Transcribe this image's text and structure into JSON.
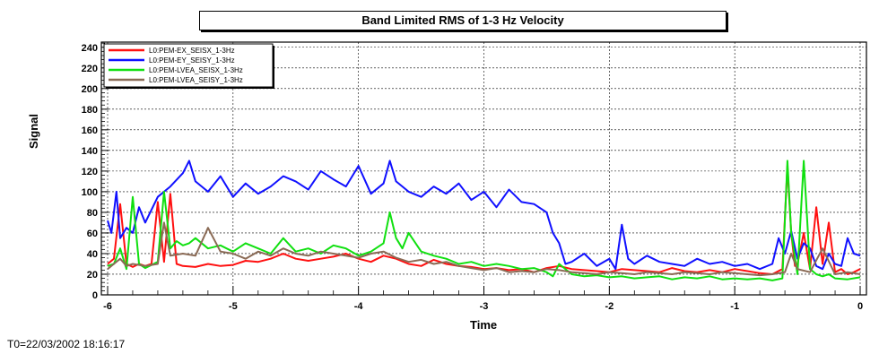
{
  "chart_data": {
    "type": "line",
    "title": "Band Limited RMS of 1-3 Hz Velocity",
    "xlabel": "Time",
    "ylabel": "Signal",
    "footer": "T0=22/03/2002 18:16:17",
    "xlim": [
      -6.05,
      0.05
    ],
    "ylim": [
      0,
      245
    ],
    "x_ticks": [
      -6,
      -5,
      -4,
      -3,
      -2,
      -1,
      0
    ],
    "y_ticks": [
      0,
      20,
      40,
      60,
      80,
      100,
      120,
      140,
      160,
      180,
      200,
      220,
      240
    ],
    "grid": true,
    "legend_position": "top-left",
    "series": [
      {
        "name": "L0:PEM-EX_SEISX_1-3Hz",
        "color": "#ff1010",
        "x": [
          -6.0,
          -5.95,
          -5.9,
          -5.85,
          -5.8,
          -5.75,
          -5.7,
          -5.65,
          -5.6,
          -5.55,
          -5.5,
          -5.45,
          -5.4,
          -5.3,
          -5.2,
          -5.1,
          -5.0,
          -4.9,
          -4.8,
          -4.7,
          -4.6,
          -4.5,
          -4.4,
          -4.3,
          -4.2,
          -4.1,
          -4.0,
          -3.9,
          -3.8,
          -3.7,
          -3.6,
          -3.5,
          -3.4,
          -3.3,
          -3.2,
          -3.1,
          -3.0,
          -2.9,
          -2.8,
          -2.7,
          -2.6,
          -2.5,
          -2.4,
          -2.3,
          -2.2,
          -2.1,
          -2.0,
          -1.9,
          -1.8,
          -1.7,
          -1.6,
          -1.5,
          -1.4,
          -1.3,
          -1.2,
          -1.1,
          -1.0,
          -0.9,
          -0.8,
          -0.7,
          -0.62,
          -0.58,
          -0.55,
          -0.52,
          -0.5,
          -0.45,
          -0.4,
          -0.35,
          -0.3,
          -0.25,
          -0.2,
          -0.15,
          -0.1,
          -0.05,
          0.0
        ],
        "values": [
          30,
          35,
          88,
          30,
          27,
          30,
          28,
          30,
          90,
          32,
          98,
          30,
          28,
          27,
          30,
          28,
          29,
          33,
          32,
          35,
          40,
          35,
          33,
          35,
          37,
          40,
          35,
          32,
          38,
          35,
          30,
          28,
          34,
          30,
          28,
          27,
          25,
          26,
          24,
          25,
          22,
          26,
          28,
          25,
          24,
          23,
          22,
          25,
          24,
          23,
          22,
          26,
          23,
          22,
          24,
          22,
          25,
          23,
          21,
          20,
          25,
          125,
          60,
          28,
          30,
          60,
          25,
          85,
          30,
          70,
          22,
          25,
          20,
          22,
          25
        ]
      },
      {
        "name": "L0:PEM-EY_SEISY_1-3Hz",
        "color": "#1010ff",
        "x": [
          -6.0,
          -5.97,
          -5.93,
          -5.9,
          -5.85,
          -5.8,
          -5.75,
          -5.7,
          -5.6,
          -5.5,
          -5.4,
          -5.35,
          -5.3,
          -5.2,
          -5.1,
          -5.0,
          -4.9,
          -4.8,
          -4.7,
          -4.6,
          -4.5,
          -4.4,
          -4.3,
          -4.2,
          -4.1,
          -4.0,
          -3.9,
          -3.8,
          -3.75,
          -3.7,
          -3.6,
          -3.5,
          -3.4,
          -3.3,
          -3.2,
          -3.1,
          -3.0,
          -2.9,
          -2.8,
          -2.7,
          -2.6,
          -2.5,
          -2.45,
          -2.4,
          -2.35,
          -2.3,
          -2.2,
          -2.1,
          -2.0,
          -1.95,
          -1.9,
          -1.85,
          -1.8,
          -1.7,
          -1.6,
          -1.5,
          -1.4,
          -1.3,
          -1.2,
          -1.1,
          -1.0,
          -0.9,
          -0.8,
          -0.7,
          -0.65,
          -0.6,
          -0.55,
          -0.5,
          -0.45,
          -0.4,
          -0.35,
          -0.3,
          -0.25,
          -0.2,
          -0.15,
          -0.1,
          -0.05,
          0.0
        ],
        "values": [
          72,
          60,
          100,
          55,
          65,
          60,
          85,
          70,
          95,
          105,
          118,
          130,
          110,
          100,
          115,
          95,
          108,
          98,
          105,
          115,
          110,
          102,
          120,
          112,
          105,
          125,
          98,
          108,
          130,
          110,
          100,
          95,
          105,
          98,
          108,
          92,
          100,
          85,
          102,
          90,
          88,
          80,
          60,
          50,
          30,
          32,
          40,
          28,
          35,
          25,
          68,
          35,
          30,
          38,
          32,
          30,
          28,
          35,
          30,
          32,
          28,
          30,
          25,
          30,
          55,
          40,
          62,
          35,
          50,
          45,
          28,
          25,
          40,
          30,
          28,
          55,
          40,
          38
        ]
      },
      {
        "name": "L0:PEM-LVEA_SEISX_1-3Hz",
        "color": "#10e010",
        "x": [
          -6.0,
          -5.95,
          -5.9,
          -5.85,
          -5.8,
          -5.75,
          -5.7,
          -5.6,
          -5.55,
          -5.5,
          -5.45,
          -5.4,
          -5.35,
          -5.3,
          -5.2,
          -5.1,
          -5.0,
          -4.9,
          -4.8,
          -4.7,
          -4.6,
          -4.5,
          -4.4,
          -4.3,
          -4.2,
          -4.1,
          -4.0,
          -3.9,
          -3.8,
          -3.75,
          -3.7,
          -3.65,
          -3.6,
          -3.5,
          -3.4,
          -3.3,
          -3.2,
          -3.1,
          -3.0,
          -2.9,
          -2.8,
          -2.7,
          -2.6,
          -2.5,
          -2.45,
          -2.4,
          -2.3,
          -2.2,
          -2.1,
          -2.0,
          -1.9,
          -1.8,
          -1.7,
          -1.6,
          -1.5,
          -1.4,
          -1.3,
          -1.2,
          -1.1,
          -1.0,
          -0.9,
          -0.8,
          -0.7,
          -0.62,
          -0.58,
          -0.55,
          -0.5,
          -0.45,
          -0.4,
          -0.35,
          -0.3,
          -0.25,
          -0.2,
          -0.1,
          0.0
        ],
        "values": [
          28,
          30,
          45,
          25,
          95,
          30,
          26,
          32,
          100,
          45,
          52,
          48,
          50,
          55,
          45,
          48,
          42,
          50,
          45,
          40,
          55,
          42,
          45,
          40,
          48,
          45,
          38,
          42,
          50,
          80,
          55,
          45,
          60,
          42,
          38,
          35,
          30,
          32,
          28,
          30,
          28,
          25,
          26,
          22,
          18,
          30,
          20,
          18,
          19,
          17,
          18,
          16,
          17,
          18,
          15,
          17,
          16,
          18,
          15,
          16,
          15,
          16,
          14,
          16,
          130,
          60,
          20,
          130,
          25,
          20,
          18,
          20,
          16,
          15,
          17
        ]
      },
      {
        "name": "L0:PEM-LVEA_SEISY_1-3Hz",
        "color": "#8a6a55",
        "x": [
          -6.0,
          -5.9,
          -5.85,
          -5.8,
          -5.7,
          -5.6,
          -5.55,
          -5.5,
          -5.4,
          -5.3,
          -5.2,
          -5.1,
          -5.0,
          -4.9,
          -4.8,
          -4.7,
          -4.6,
          -4.5,
          -4.4,
          -4.3,
          -4.2,
          -4.1,
          -4.0,
          -3.9,
          -3.8,
          -3.7,
          -3.6,
          -3.5,
          -3.4,
          -3.3,
          -3.2,
          -3.1,
          -3.0,
          -2.9,
          -2.8,
          -2.7,
          -2.6,
          -2.5,
          -2.4,
          -2.3,
          -2.2,
          -2.1,
          -2.0,
          -1.9,
          -1.8,
          -1.7,
          -1.6,
          -1.5,
          -1.4,
          -1.3,
          -1.2,
          -1.1,
          -1.0,
          -0.9,
          -0.8,
          -0.7,
          -0.6,
          -0.55,
          -0.5,
          -0.4,
          -0.3,
          -0.2,
          -0.1,
          0.0
        ],
        "values": [
          25,
          35,
          28,
          30,
          28,
          30,
          70,
          38,
          40,
          38,
          65,
          42,
          40,
          35,
          42,
          38,
          45,
          40,
          38,
          42,
          40,
          38,
          36,
          40,
          42,
          36,
          32,
          34,
          30,
          32,
          28,
          26,
          24,
          26,
          22,
          23,
          22,
          25,
          24,
          22,
          21,
          20,
          22,
          21,
          20,
          22,
          21,
          20,
          22,
          21,
          20,
          22,
          21,
          20,
          19,
          20,
          22,
          40,
          25,
          22,
          45,
          20,
          22,
          20
        ]
      }
    ]
  }
}
